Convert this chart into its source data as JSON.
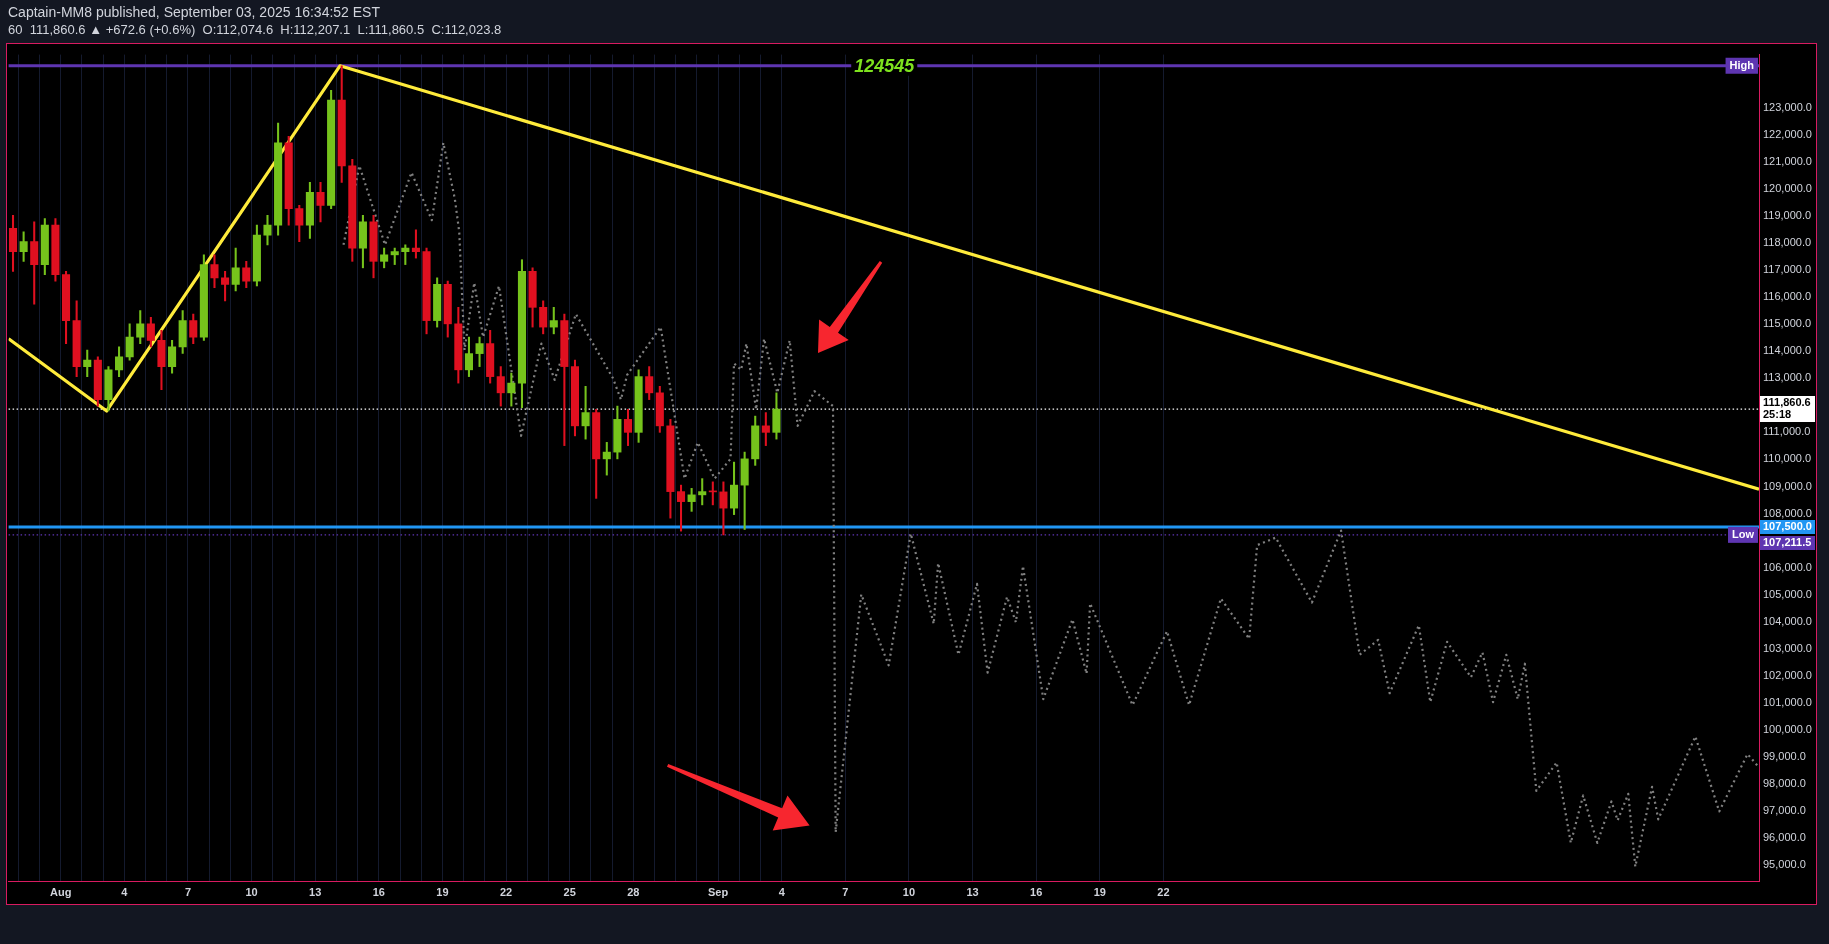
{
  "chart_data": {
    "type": "candlestick",
    "title": "Captain-MM8 published, September 03, 2025 16:34:52 EST",
    "subtitle": "60  111,860.6 ▲ +672.6 (+0.6%)  O:112,074.6  H:112,207.1  L:111,860.5  C:112,023.8",
    "xlim": [
      "2025-07-29T13:00",
      "2025-10-20T02:00"
    ],
    "xticks": [
      {
        "value": "2025-07-30",
        "label": null
      },
      {
        "value": "2025-07-31",
        "label": null
      },
      {
        "value": "2025-08-01",
        "label": "Aug"
      },
      {
        "value": "2025-08-02",
        "label": null
      },
      {
        "value": "2025-08-03",
        "label": null
      },
      {
        "value": "2025-08-04",
        "label": "4"
      },
      {
        "value": "2025-08-05",
        "label": null
      },
      {
        "value": "2025-08-06",
        "label": null
      },
      {
        "value": "2025-08-07",
        "label": "7"
      },
      {
        "value": "2025-08-08",
        "label": null
      },
      {
        "value": "2025-08-09",
        "label": null
      },
      {
        "value": "2025-08-10",
        "label": "10"
      },
      {
        "value": "2025-08-11",
        "label": null
      },
      {
        "value": "2025-08-12",
        "label": null
      },
      {
        "value": "2025-08-13",
        "label": "13"
      },
      {
        "value": "2025-08-14",
        "label": null
      },
      {
        "value": "2025-08-15",
        "label": null
      },
      {
        "value": "2025-08-16",
        "label": "16"
      },
      {
        "value": "2025-08-17",
        "label": null
      },
      {
        "value": "2025-08-18",
        "label": null
      },
      {
        "value": "2025-08-19",
        "label": "19"
      },
      {
        "value": "2025-08-20",
        "label": null
      },
      {
        "value": "2025-08-21",
        "label": null
      },
      {
        "value": "2025-08-22",
        "label": "22"
      },
      {
        "value": "2025-08-23",
        "label": null
      },
      {
        "value": "2025-08-24",
        "label": null
      },
      {
        "value": "2025-08-25",
        "label": "25"
      },
      {
        "value": "2025-08-26",
        "label": null
      },
      {
        "value": "2025-08-27",
        "label": null
      },
      {
        "value": "2025-08-28",
        "label": "28"
      },
      {
        "value": "2025-08-29",
        "label": null
      },
      {
        "value": "2025-08-30",
        "label": null
      },
      {
        "value": "2025-08-31",
        "label": null
      },
      {
        "value": "2025-09-01",
        "label": "Sep"
      },
      {
        "value": "2025-09-02",
        "label": null
      },
      {
        "value": "2025-09-03",
        "label": null
      },
      {
        "value": "2025-09-04",
        "label": "4"
      },
      {
        "value": "2025-09-07",
        "label": "7"
      },
      {
        "value": "2025-09-10",
        "label": "10"
      },
      {
        "value": "2025-09-13",
        "label": "13"
      },
      {
        "value": "2025-09-16",
        "label": "16"
      },
      {
        "value": "2025-09-19",
        "label": "19"
      },
      {
        "value": "2025-09-22",
        "label": "22"
      }
    ],
    "ylim": [
      94420,
      124960
    ],
    "yticks": [
      {
        "value": 95000,
        "label": "95,000.0"
      },
      {
        "value": 96000,
        "label": "96,000.0"
      },
      {
        "value": 97000,
        "label": "97,000.0"
      },
      {
        "value": 98000,
        "label": "98,000.0"
      },
      {
        "value": 99000,
        "label": "99,000.0"
      },
      {
        "value": 100000,
        "label": "100,000.0"
      },
      {
        "value": 101000,
        "label": "101,000.0"
      },
      {
        "value": 102000,
        "label": "102,000.0"
      },
      {
        "value": 103000,
        "label": "103,000.0"
      },
      {
        "value": 104000,
        "label": "104,000.0"
      },
      {
        "value": 105000,
        "label": "105,000.0"
      },
      {
        "value": 106000,
        "label": "106,000.0"
      },
      {
        "value": 108000,
        "label": "108,000.0"
      },
      {
        "value": 109000,
        "label": "109,000.0"
      },
      {
        "value": 110000,
        "label": "110,000.0"
      },
      {
        "value": 111000,
        "label": "111,000.0"
      },
      {
        "value": 113000,
        "label": "113,000.0"
      },
      {
        "value": 114000,
        "label": "114,000.0"
      },
      {
        "value": 115000,
        "label": "115,000.0"
      },
      {
        "value": 116000,
        "label": "116,000.0"
      },
      {
        "value": 117000,
        "label": "117,000.0"
      },
      {
        "value": 118000,
        "label": "118,000.0"
      },
      {
        "value": 119000,
        "label": "119,000.0"
      },
      {
        "value": 120000,
        "label": "120,000.0"
      },
      {
        "value": 121000,
        "label": "121,000.0"
      },
      {
        "value": 122000,
        "label": "122,000.0"
      },
      {
        "value": 123000,
        "label": "123,000.0"
      }
    ],
    "grid": "x",
    "series": [
      {
        "x": [
          "2025-07-29T18:00",
          "2025-07-30T06:00",
          "2025-07-30T18:00",
          "2025-07-31T06:00",
          "2025-07-31T18:00",
          "2025-08-01T06:00",
          "2025-08-01T18:00",
          "2025-08-02T06:00",
          "2025-08-02T18:00",
          "2025-08-03T06:00",
          "2025-08-03T18:00",
          "2025-08-04T06:00",
          "2025-08-04T18:00",
          "2025-08-05T06:00",
          "2025-08-05T18:00",
          "2025-08-06T06:00",
          "2025-08-06T18:00",
          "2025-08-07T06:00",
          "2025-08-07T18:00",
          "2025-08-08T06:00",
          "2025-08-08T18:00",
          "2025-08-09T06:00",
          "2025-08-09T18:00",
          "2025-08-10T06:00",
          "2025-08-10T18:00",
          "2025-08-11T06:00",
          "2025-08-11T18:00",
          "2025-08-12T06:00",
          "2025-08-12T18:00",
          "2025-08-13T06:00",
          "2025-08-13T18:00",
          "2025-08-14T06:00",
          "2025-08-14T18:00",
          "2025-08-15T06:00",
          "2025-08-15T18:00",
          "2025-08-16T06:00",
          "2025-08-16T18:00",
          "2025-08-17T06:00",
          "2025-08-17T18:00",
          "2025-08-18T06:00",
          "2025-08-18T18:00",
          "2025-08-19T06:00",
          "2025-08-19T18:00",
          "2025-08-20T06:00",
          "2025-08-20T18:00",
          "2025-08-21T06:00",
          "2025-08-21T18:00",
          "2025-08-22T06:00",
          "2025-08-22T18:00",
          "2025-08-23T06:00",
          "2025-08-23T18:00",
          "2025-08-24T06:00",
          "2025-08-24T18:00",
          "2025-08-25T06:00",
          "2025-08-25T18:00",
          "2025-08-26T06:00",
          "2025-08-26T18:00",
          "2025-08-27T06:00",
          "2025-08-27T18:00",
          "2025-08-28T06:00",
          "2025-08-28T18:00",
          "2025-08-29T06:00",
          "2025-08-29T18:00",
          "2025-08-30T06:00",
          "2025-08-30T18:00",
          "2025-08-31T06:00",
          "2025-08-31T18:00",
          "2025-09-01T06:00",
          "2025-09-01T18:00",
          "2025-09-02T06:00",
          "2025-09-02T18:00",
          "2025-09-03T06:00",
          "2025-09-03T18:00"
        ],
        "ohlc": [
          [
            118540,
            119020,
            116950,
            117680
          ],
          [
            117680,
            118410,
            117320,
            118050
          ],
          [
            118050,
            118780,
            115740,
            117200
          ],
          [
            117200,
            118900,
            116830,
            118660
          ],
          [
            118660,
            118900,
            116590,
            116830
          ],
          [
            116830,
            116950,
            114280,
            115130
          ],
          [
            115130,
            115860,
            113060,
            113430
          ],
          [
            113430,
            114040,
            113060,
            113670
          ],
          [
            113670,
            113790,
            111970,
            112210
          ],
          [
            112210,
            113430,
            111790,
            113310
          ],
          [
            113310,
            114160,
            113060,
            113790
          ],
          [
            113790,
            115010,
            113670,
            114520
          ],
          [
            114520,
            115500,
            114280,
            115010
          ],
          [
            115010,
            115250,
            114160,
            114400
          ],
          [
            114400,
            114770,
            112580,
            113430
          ],
          [
            113430,
            114400,
            113190,
            114160
          ],
          [
            114160,
            115500,
            113920,
            115130
          ],
          [
            115130,
            115370,
            114280,
            114520
          ],
          [
            114520,
            117560,
            114400,
            117200
          ],
          [
            117200,
            117560,
            116350,
            116710
          ],
          [
            116710,
            116950,
            115860,
            116470
          ],
          [
            116470,
            117810,
            116230,
            117080
          ],
          [
            117080,
            117320,
            116350,
            116590
          ],
          [
            116590,
            118660,
            116410,
            118290
          ],
          [
            118290,
            119020,
            117930,
            118660
          ],
          [
            118660,
            122430,
            118290,
            121700
          ],
          [
            121700,
            121940,
            118660,
            119270
          ],
          [
            119270,
            119390,
            118050,
            118660
          ],
          [
            118660,
            120240,
            118170,
            119870
          ],
          [
            119870,
            120240,
            118780,
            119390
          ],
          [
            119390,
            123640,
            119270,
            123280
          ],
          [
            123280,
            124545,
            120240,
            120850
          ],
          [
            120850,
            121090,
            117320,
            117810
          ],
          [
            117810,
            119020,
            117080,
            118780
          ],
          [
            118780,
            119020,
            116710,
            117320
          ],
          [
            117320,
            117810,
            117080,
            117560
          ],
          [
            117560,
            117810,
            117200,
            117680
          ],
          [
            117680,
            117930,
            117200,
            117810
          ],
          [
            117810,
            118480,
            117440,
            117680
          ],
          [
            117680,
            117810,
            114640,
            115130
          ],
          [
            115130,
            116710,
            114890,
            116470
          ],
          [
            116470,
            116590,
            114520,
            115010
          ],
          [
            115010,
            115620,
            112820,
            113310
          ],
          [
            113310,
            114520,
            113060,
            113910
          ],
          [
            113910,
            114520,
            113430,
            114280
          ],
          [
            114280,
            114770,
            112820,
            113060
          ],
          [
            113060,
            113430,
            111970,
            112460
          ],
          [
            112460,
            113190,
            111970,
            112820
          ],
          [
            112820,
            117380,
            111910,
            116950
          ],
          [
            116950,
            117080,
            114890,
            115620
          ],
          [
            115620,
            115860,
            114640,
            114890
          ],
          [
            114890,
            115620,
            114640,
            115130
          ],
          [
            115130,
            115370,
            110510,
            113430
          ],
          [
            113430,
            113670,
            110870,
            111240
          ],
          [
            111240,
            112700,
            110750,
            111730
          ],
          [
            111730,
            111850,
            108560,
            110020
          ],
          [
            110020,
            110630,
            109420,
            110270
          ],
          [
            110270,
            111970,
            110020,
            111480
          ],
          [
            111480,
            111850,
            110510,
            111000
          ],
          [
            111000,
            113310,
            110630,
            113060
          ],
          [
            113060,
            113430,
            112210,
            112460
          ],
          [
            112460,
            112700,
            111000,
            111240
          ],
          [
            111240,
            111480,
            107830,
            108810
          ],
          [
            108810,
            109050,
            107350,
            108440
          ],
          [
            108440,
            108930,
            108080,
            108690
          ],
          [
            108690,
            109290,
            108320,
            108810
          ],
          [
            108810,
            109170,
            108320,
            108800
          ],
          [
            108800,
            109170,
            107210,
            108200
          ],
          [
            108200,
            109900,
            107960,
            109050
          ],
          [
            109050,
            110270,
            107410,
            110020
          ],
          [
            110020,
            111600,
            109780,
            111240
          ],
          [
            111240,
            111730,
            110510,
            111000
          ],
          [
            111000,
            112460,
            110750,
            111860.6
          ]
        ],
        "colors": [
          "#e01020",
          "#76c31c",
          "#e01020",
          "#76c31c",
          "#e01020",
          "#e01020",
          "#e01020",
          "#76c31c",
          "#e01020",
          "#76c31c",
          "#76c31c",
          "#76c31c",
          "#76c31c",
          "#e01020",
          "#e01020",
          "#76c31c",
          "#76c31c",
          "#e01020",
          "#76c31c",
          "#e01020",
          "#e01020",
          "#76c31c",
          "#e01020",
          "#76c31c",
          "#76c31c",
          "#76c31c",
          "#e01020",
          "#e01020",
          "#76c31c",
          "#e01020",
          "#76c31c",
          "#e01020",
          "#e01020",
          "#76c31c",
          "#e01020",
          "#76c31c",
          "#76c31c",
          "#76c31c",
          "#e01020",
          "#e01020",
          "#76c31c",
          "#e01020",
          "#e01020",
          "#76c31c",
          "#76c31c",
          "#e01020",
          "#e01020",
          "#76c31c",
          "#76c31c",
          "#e01020",
          "#e01020",
          "#76c31c",
          "#e01020",
          "#e01020",
          "#76c31c",
          "#e01020",
          "#76c31c",
          "#76c31c",
          "#e01020",
          "#76c31c",
          "#e01020",
          "#e01020",
          "#e01020",
          "#e01020",
          "#76c31c",
          "#76c31c",
          "#e01020",
          "#e01020",
          "#76c31c",
          "#76c31c",
          "#76c31c",
          "#e01020",
          "#76c31c"
        ]
      },
      {
        "type": "line",
        "color": "#ffeb3b",
        "x": [
          "2025-07-29T13:00",
          "2025-08-03T04:00",
          "2025-08-14T04:00",
          "2025-10-20T02:00"
        ],
        "values": [
          114460,
          111790,
          124545,
          108900
        ]
      },
      {
        "type": "line",
        "color": "#808080",
        "line_style": "dotted",
        "x": [
          "2025-08-14T08:00",
          "2025-08-15T02:00",
          "2025-08-16T07:00",
          "2025-08-17T13:00",
          "2025-08-18T12:00",
          "2025-08-19T01:00",
          "2025-08-19T14:00",
          "2025-08-19T19:00",
          "2025-08-20T01:00",
          "2025-08-20T12:00",
          "2025-08-20T22:00",
          "2025-08-21T16:00",
          "2025-08-22T17:00",
          "2025-08-23T16:00",
          "2025-08-24T07:00",
          "2025-08-25T07:00",
          "2025-08-26T04:00",
          "2025-08-27T01:00",
          "2025-08-27T10:00",
          "2025-08-27T17:00",
          "2025-08-28T07:00",
          "2025-08-29T07:00",
          "2025-08-30T10:00",
          "2025-08-31T01:00",
          "2025-08-31T20:00",
          "2025-09-01T14:00",
          "2025-09-01T18:00",
          "2025-09-02T02:00",
          "2025-09-02T08:00",
          "2025-09-02T19:00",
          "2025-09-03T04:00",
          "2025-09-03T19:00",
          "2025-09-04T09:00",
          "2025-09-04T18:00",
          "2025-09-05T13:00",
          "2025-09-06T10:00",
          "2025-09-06T13:00",
          "2025-09-07T18:00",
          "2025-09-09T01:00",
          "2025-09-10T02:00",
          "2025-09-11T04:00",
          "2025-09-11T09:00",
          "2025-09-12T08:00",
          "2025-09-13T05:00",
          "2025-09-13T17:00",
          "2025-09-14T15:00",
          "2025-09-15T01:00",
          "2025-09-15T09:00",
          "2025-09-16T08:00",
          "2025-09-17T17:00",
          "2025-09-18T09:00",
          "2025-09-18T13:00",
          "2025-09-20T13:00",
          "2025-09-22T04:00",
          "2025-09-23T05:00",
          "2025-09-24T17:00",
          "2025-09-26T01:00",
          "2025-09-26T10:00",
          "2025-09-27T07:00",
          "2025-09-29T00:00",
          "2025-09-30T09:00",
          "2025-10-01T06:00",
          "2025-10-02T03:00",
          "2025-10-02T16:00",
          "2025-10-04T01:00",
          "2025-10-04T14:00",
          "2025-10-05T09:00",
          "2025-10-06T12:00",
          "2025-10-07T01:00",
          "2025-10-07T13:00",
          "2025-10-08T04:00",
          "2025-10-08T17:00",
          "2025-10-09T01:00",
          "2025-10-09T14:00",
          "2025-10-10T13:00",
          "2025-10-11T05:00",
          "2025-10-11T19:00",
          "2025-10-12T11:00",
          "2025-10-13T03:00",
          "2025-10-13T10:00",
          "2025-10-13T22:00",
          "2025-10-14T06:00",
          "2025-10-15T01:00",
          "2025-10-15T08:00",
          "2025-10-17T02:00",
          "2025-10-18T05:00",
          "2025-10-19T13:00",
          "2025-10-20T02:00"
        ],
        "values": [
          117930,
          120850,
          117930,
          120600,
          118840,
          121700,
          119630,
          118410,
          114040,
          116530,
          114520,
          116410,
          110870,
          114280,
          112940,
          115370,
          null,
          113000,
          112210,
          113120,
          null,
          114890,
          109290,
          110630,
          109290,
          110020,
          113550,
          113310,
          114280,
          111850,
          114460,
          112460,
          114400,
          111240,
          112520,
          111970,
          96220,
          105010,
          102390,
          107260,
          103920,
          106170,
          102780,
          105400,
          102120,
          104920,
          103980,
          106060,
          101140,
          104090,
          102080,
          104680,
          100920,
          103650,
          100920,
          104860,
          103370,
          106830,
          107110,
          104710,
          107370,
          102780,
          103330,
          101360,
          103870,
          101030,
          103260,
          101950,
          102870,
          101030,
          102780,
          101140,
          102450,
          97750,
          98800,
          95830,
          97580,
          95830,
          97360,
          96660,
          97640,
          94950,
          97900,
          96700,
          99760,
          96990,
          99110,
          98620
        ]
      }
    ],
    "ref_lines": [
      {
        "axis": "y",
        "value": 124545,
        "color": "#5e35b1"
      },
      {
        "axis": "y",
        "value": 111860.6,
        "label": "111,860.6\n25:18",
        "color": "#ffffff",
        "line_style": "dotted"
      },
      {
        "axis": "y",
        "value": 107500,
        "label": "107,500.0",
        "color": "#2196f3"
      },
      {
        "axis": "y",
        "value": 107211.5,
        "label": "107,211.5",
        "color": "#5e35b1",
        "line_style": "dotted"
      }
    ],
    "annotations": [
      {
        "text": "124545",
        "x": "2025-09-08T20:00",
        "y": 124545
      },
      {
        "text": "High",
        "y": 124545
      },
      {
        "text": "Low",
        "y": 107211.5
      }
    ]
  }
}
